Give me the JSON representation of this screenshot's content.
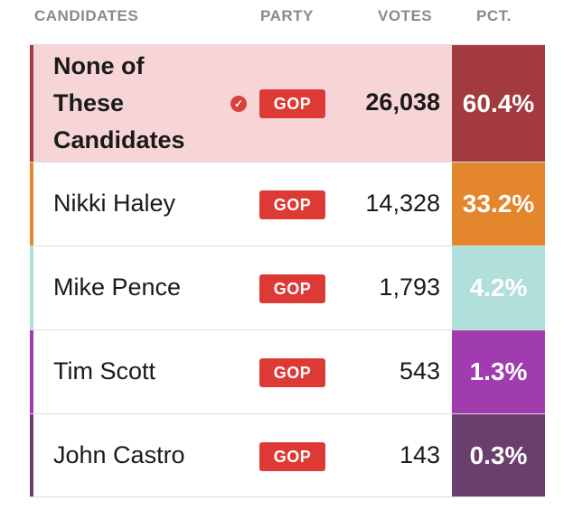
{
  "header": {
    "candidates": "CANDIDATES",
    "party": "PARTY",
    "votes": "VOTES",
    "pct": "PCT."
  },
  "rows": [
    {
      "name_lines": [
        "None of",
        "These",
        "Candidates"
      ],
      "party": "GOP",
      "votes": "26,038",
      "pct": "60.4%",
      "winner": true,
      "icon": "check-circle-icon",
      "color": "#a33a3f",
      "row_bg": "#f7d5d7"
    },
    {
      "name": "Nikki Haley",
      "party": "GOP",
      "votes": "14,328",
      "pct": "33.2%",
      "color": "#e3862c"
    },
    {
      "name": "Mike Pence",
      "party": "GOP",
      "votes": "1,793",
      "pct": "4.2%",
      "color": "#b1e0da"
    },
    {
      "name": "Tim Scott",
      "party": "GOP",
      "votes": "543",
      "pct": "1.3%",
      "color": "#a03bb0"
    },
    {
      "name": "John Castro",
      "party": "GOP",
      "votes": "143",
      "pct": "0.3%",
      "color": "#6a3f6e"
    }
  ],
  "party_badge_color": "#dd3a36"
}
